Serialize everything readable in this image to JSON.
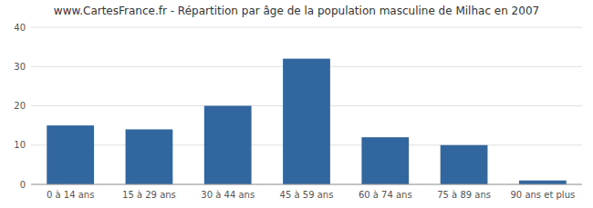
{
  "chart_data": {
    "type": "bar",
    "title": "www.CartesFrance.fr - Répartition par âge de la population masculine de Milhac en 2007",
    "categories": [
      "0 à 14 ans",
      "15 à 29 ans",
      "30 à 44 ans",
      "45 à 59 ans",
      "60 à 74 ans",
      "75 à 89 ans",
      "90 ans et plus"
    ],
    "values": [
      15,
      14,
      20,
      32,
      12,
      10,
      1
    ],
    "color": "#31679e",
    "ylim": [
      0,
      40
    ],
    "yticks": [
      0,
      10,
      20,
      30,
      40
    ],
    "grid": true
  }
}
